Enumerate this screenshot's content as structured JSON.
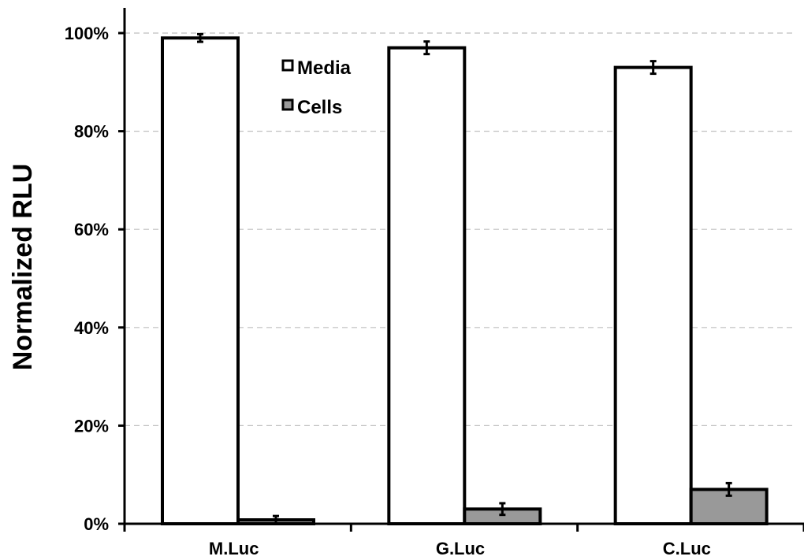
{
  "chart_data": {
    "type": "bar",
    "categories": [
      "M.Luc",
      "G.Luc",
      "C.Luc"
    ],
    "series": [
      {
        "name": "Media",
        "values": [
          99,
          97,
          93
        ],
        "errors": [
          0.3,
          0.8,
          0.8
        ],
        "color": "#ffffff"
      },
      {
        "name": "Cells",
        "values": [
          0.8,
          3,
          7
        ],
        "errors": [
          0.3,
          0.7,
          0.8
        ],
        "color": "#999999"
      }
    ],
    "ylabel": "Normalized RLU",
    "xlabel": "",
    "ylim": [
      0,
      100
    ],
    "yticks": [
      0,
      20,
      40,
      60,
      80,
      100
    ],
    "ytick_labels": [
      "0%",
      "20%",
      "40%",
      "60%",
      "80%",
      "100%"
    ],
    "grid": "horizontal dashed",
    "legend_position": "top-center"
  }
}
